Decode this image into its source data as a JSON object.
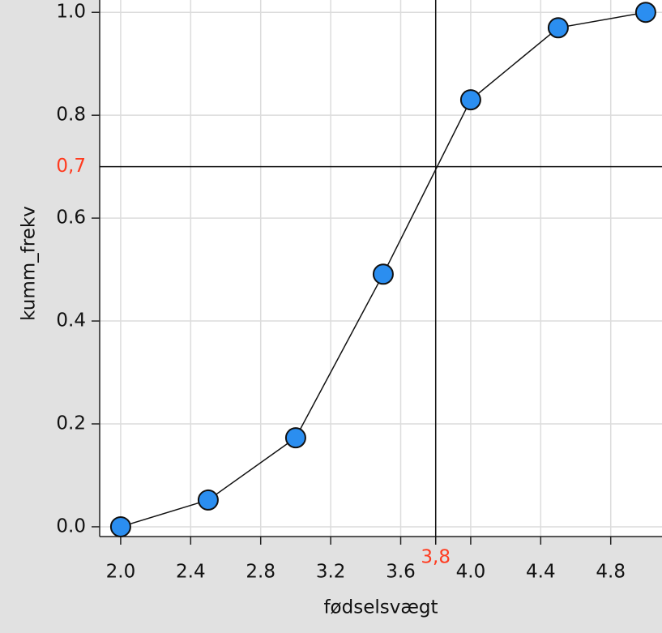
{
  "chart_data": {
    "type": "line",
    "x_label": "fødselsvægt",
    "y_label": "kumm_frekv",
    "x": [
      2.0,
      2.5,
      3.0,
      3.5,
      4.0,
      4.5,
      5.0
    ],
    "series": [
      {
        "color": "#2b8ef0",
        "values": [
          0,
          0.052,
          0.173,
          0.491,
          0.83,
          0.97,
          1.0
        ]
      }
    ],
    "xlim": [
      1.88,
      5.093
    ],
    "ylim": [
      -0.019,
      1.024
    ],
    "xticks": [
      {
        "value": 2.0,
        "label": "2.0"
      },
      2.4,
      2.8,
      3.2,
      3.6,
      {
        "value": 4.0,
        "label": "4.0"
      },
      4.4,
      4.8
    ],
    "yticks": [
      {
        "value": 0,
        "label": "0.0"
      },
      0.2,
      0.4,
      0.6,
      0.8,
      {
        "value": 1.0,
        "label": "1.0"
      }
    ],
    "grid": true,
    "reference_lines": [
      {
        "axis": "y",
        "value": 0.7,
        "label": "0,7",
        "color": "#ff3b1f"
      },
      {
        "axis": "x",
        "value": 3.8,
        "label": "3,8",
        "color": "#ff3b1f"
      }
    ]
  }
}
